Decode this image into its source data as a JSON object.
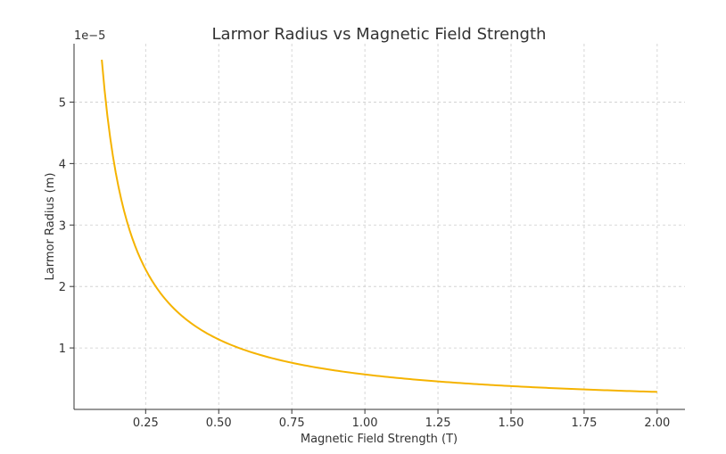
{
  "chart_data": {
    "type": "line",
    "title": "Larmor Radius vs Magnetic Field Strength",
    "xlabel": "Magnetic Field Strength (T)",
    "ylabel": "Larmor Radius (m)",
    "y_offset_label": "1e−5",
    "xlim": [
      0.005,
      2.095
    ],
    "ylim": [
      0.0,
      5.95
    ],
    "x_ticks": [
      0.25,
      0.5,
      0.75,
      1.0,
      1.25,
      1.5,
      1.75,
      2.0
    ],
    "x_tick_labels": [
      "0.25",
      "0.50",
      "0.75",
      "1.00",
      "1.25",
      "1.50",
      "1.75",
      "2.00"
    ],
    "y_ticks": [
      1,
      2,
      3,
      4,
      5
    ],
    "y_tick_labels": [
      "1",
      "2",
      "3",
      "4",
      "5"
    ],
    "grid": true,
    "series": [
      {
        "color": "#F5B300",
        "function": "y = 0.569 / x (x 10^-5 m)",
        "x_start": 0.1,
        "x_end": 2.0,
        "x": [
          0.1,
          0.15,
          0.2,
          0.25,
          0.3,
          0.4,
          0.5,
          0.75,
          1.0,
          1.25,
          1.5,
          1.75,
          2.0
        ],
        "y": [
          5.69,
          3.79,
          2.85,
          2.28,
          1.9,
          1.42,
          1.14,
          0.76,
          0.57,
          0.46,
          0.38,
          0.33,
          0.28
        ]
      }
    ]
  }
}
